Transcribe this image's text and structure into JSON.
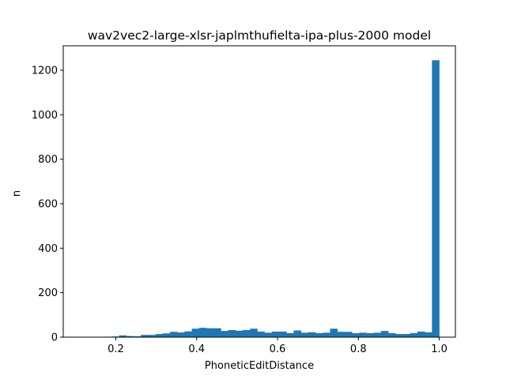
{
  "chart_data": {
    "type": "bar",
    "title": "wav2vec2-large-xlsr-japlmthufielta-ipa-plus-2000 model",
    "xlabel": "PhoneticEditDistance",
    "ylabel": "n",
    "xlim": [
      0.07,
      1.04
    ],
    "ylim": [
      0,
      1310
    ],
    "xticks": [
      0.2,
      0.4,
      0.6,
      0.8,
      1.0
    ],
    "yticks": [
      0,
      200,
      400,
      600,
      800,
      1000,
      1200
    ],
    "bar_color": "#1f77b4",
    "bin_start": 0.1,
    "bin_width": 0.018,
    "counts": [
      0,
      0,
      0,
      0,
      2,
      3,
      8,
      5,
      4,
      10,
      10,
      14,
      17,
      24,
      21,
      26,
      38,
      42,
      40,
      40,
      28,
      32,
      29,
      32,
      38,
      25,
      20,
      25,
      25,
      18,
      30,
      20,
      22,
      18,
      20,
      38,
      24,
      24,
      18,
      20,
      18,
      20,
      28,
      18,
      14,
      14,
      18,
      25,
      22,
      1245
    ],
    "grid": false,
    "legend": "none"
  }
}
